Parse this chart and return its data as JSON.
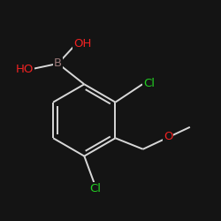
{
  "bg_color": "#141414",
  "bond_color": "#d8d8d8",
  "bond_width": 1.4,
  "atom_colors": {
    "B": "#9a7878",
    "O": "#ee2222",
    "Cl": "#22cc22"
  },
  "font_size": 9.5,
  "figsize": [
    2.5,
    2.5
  ],
  "dpi": 100
}
